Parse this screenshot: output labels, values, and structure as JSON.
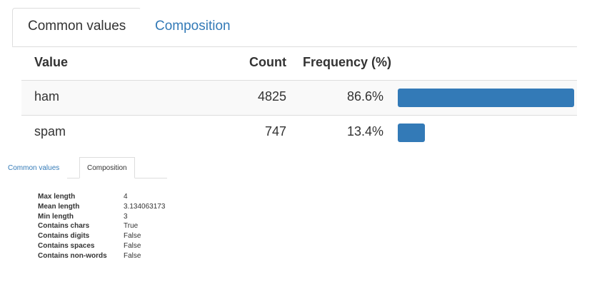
{
  "top_panel": {
    "tabs": [
      "Common values",
      "Composition"
    ],
    "active_tab": 0,
    "table": {
      "headers": [
        "Value",
        "Count",
        "Frequency (%)"
      ],
      "rows": [
        {
          "value": "ham",
          "count": 4825,
          "frequency": {
            "value": 86.6,
            "label": "86.6%"
          }
        },
        {
          "value": "spam",
          "count": 747,
          "frequency": {
            "value": 13.4,
            "label": "13.4%"
          }
        }
      ]
    }
  },
  "bottom_panel": {
    "tabs": [
      "Common values",
      "Composition"
    ],
    "active_tab": 1,
    "rows": [
      [
        "Max length",
        4
      ],
      [
        "Mean length",
        3.134063173
      ],
      [
        "Min length",
        3
      ],
      [
        "Contains chars",
        "True"
      ],
      [
        "Contains digits",
        "False"
      ],
      [
        "Contains spaces",
        "False"
      ],
      [
        "Contains non-words",
        "False"
      ]
    ]
  }
}
